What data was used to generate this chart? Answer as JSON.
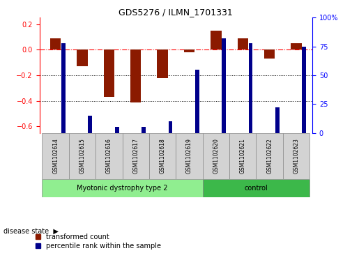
{
  "title": "GDS5276 / ILMN_1701331",
  "samples": [
    "GSM1102614",
    "GSM1102615",
    "GSM1102616",
    "GSM1102617",
    "GSM1102618",
    "GSM1102619",
    "GSM1102620",
    "GSM1102621",
    "GSM1102622",
    "GSM1102623"
  ],
  "red_values": [
    0.09,
    -0.13,
    -0.37,
    -0.41,
    -0.22,
    -0.02,
    0.15,
    0.09,
    -0.07,
    0.05
  ],
  "blue_values": [
    78,
    15,
    5,
    5,
    10,
    55,
    82,
    78,
    22,
    75
  ],
  "groups": [
    {
      "label": "Myotonic dystrophy type 2",
      "start": 0,
      "end": 6,
      "color": "#90ee90"
    },
    {
      "label": "control",
      "start": 6,
      "end": 10,
      "color": "#3cb84a"
    }
  ],
  "ylim_left": [
    -0.65,
    0.25
  ],
  "ylim_right": [
    0,
    100
  ],
  "yticks_left": [
    -0.6,
    -0.4,
    -0.2,
    0.0,
    0.2
  ],
  "yticks_right": [
    0,
    25,
    50,
    75,
    100
  ],
  "red_color": "#8b1a00",
  "blue_color": "#00008b",
  "red_bar_width": 0.4,
  "blue_bar_width": 0.15,
  "hline_y": 0.0,
  "dotted_lines": [
    -0.2,
    -0.4
  ],
  "sample_box_color": "#d3d3d3",
  "legend_red_label": "transformed count",
  "legend_blue_label": "percentile rank within the sample",
  "disease_state_label": "disease state"
}
